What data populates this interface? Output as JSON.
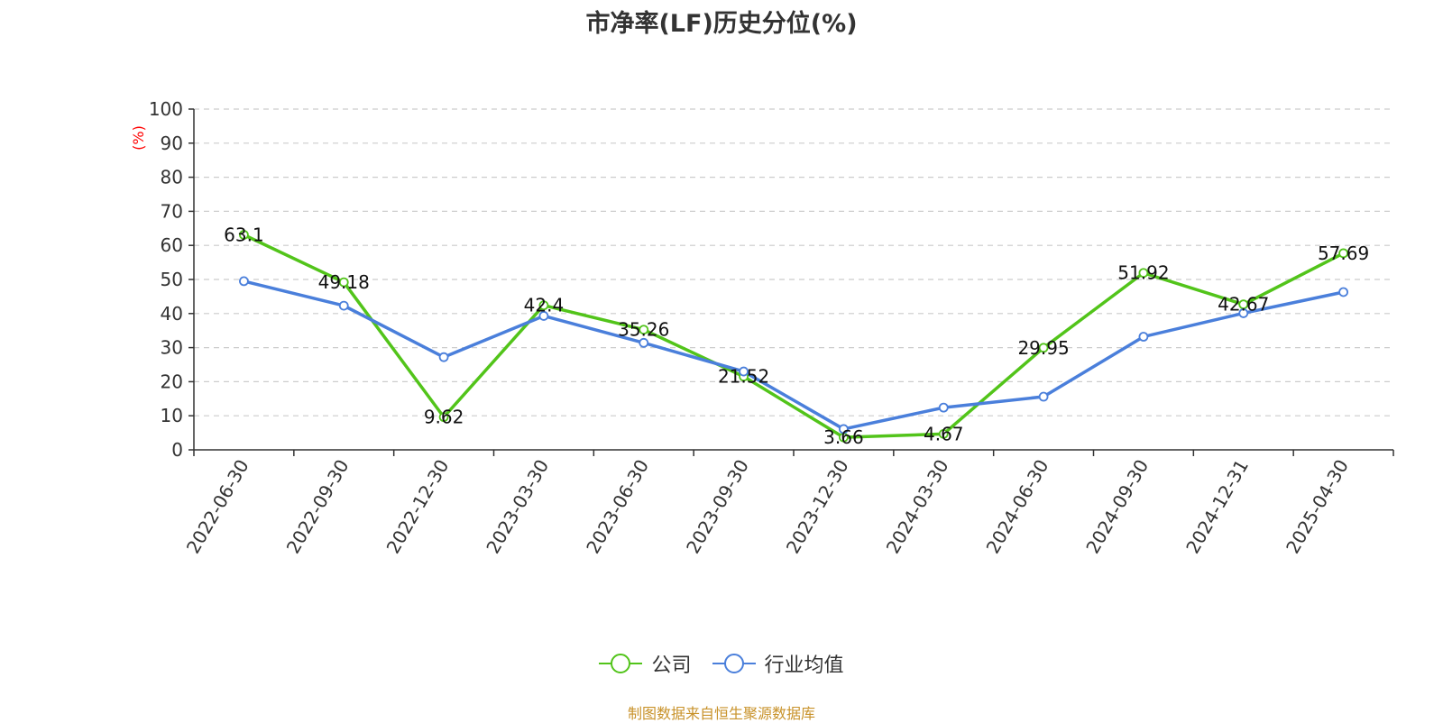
{
  "chart_data": {
    "type": "line",
    "title": "市净率(LF)历史分位(%)",
    "ylabel": "(%)",
    "ylim": [
      0,
      100
    ],
    "yticks": [
      0,
      10,
      20,
      30,
      40,
      50,
      60,
      70,
      80,
      90,
      100
    ],
    "grid": true,
    "legend_position": "bottom",
    "categories": [
      "2022-06-30",
      "2022-09-30",
      "2022-12-30",
      "2023-03-30",
      "2023-06-30",
      "2023-09-30",
      "2023-12-30",
      "2024-03-30",
      "2024-06-30",
      "2024-09-30",
      "2024-12-31",
      "2025-04-30"
    ],
    "series": [
      {
        "name": "公司",
        "color": "#52c41a",
        "values": [
          63.1,
          49.18,
          9.62,
          42.4,
          35.26,
          21.52,
          3.66,
          4.67,
          29.95,
          51.92,
          42.67,
          57.69
        ],
        "labels": [
          "63.1",
          "49.18",
          "9.62",
          "42.4",
          "35.26",
          "21.52",
          "3.66",
          "4.67",
          "29.95",
          "51.92",
          "42.67",
          "57.69"
        ]
      },
      {
        "name": "行业均值",
        "color": "#4a7fdb",
        "values": [
          49.5,
          42.3,
          27.2,
          39.3,
          31.4,
          23.0,
          6.1,
          12.4,
          15.6,
          33.2,
          40.1,
          46.3
        ]
      }
    ],
    "source": "制图数据来自恒生聚源数据库",
    "source_color": "#c8922a",
    "ylabel_color": "#ff0000"
  }
}
